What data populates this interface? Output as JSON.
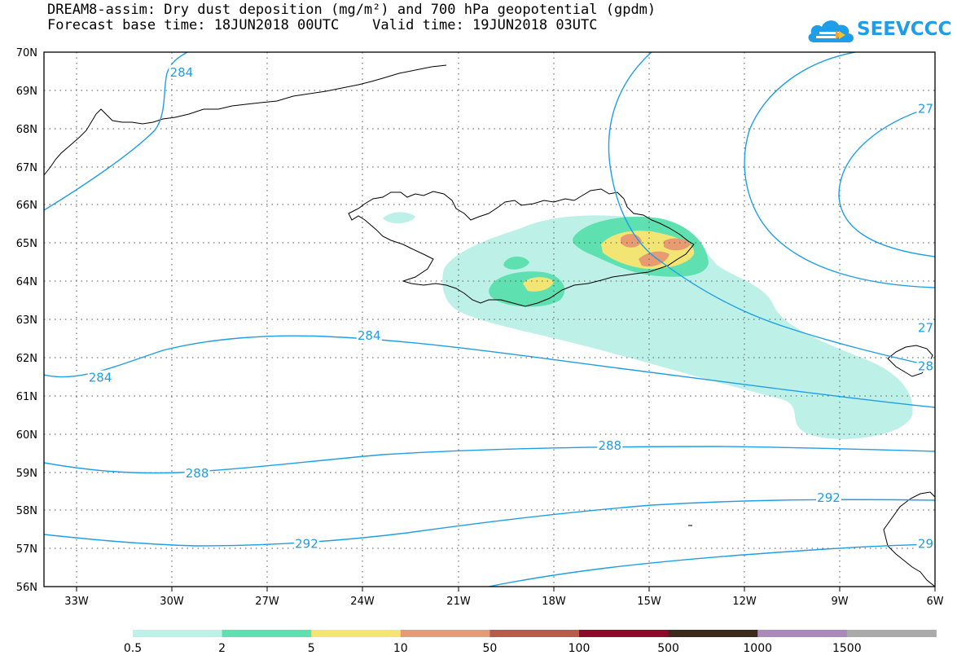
{
  "title": {
    "line1": "DREAM8-assim: Dry dust deposition (mg/m²) and 700 hPa geopotential (gpdm)",
    "line2": "Forecast base time: 18JUN2018 00UTC    Valid time: 19JUN2018 03UTC"
  },
  "logo": {
    "text": "SEEVCCC",
    "icon": "cloud-logo-icon",
    "color": "#1e9ee8"
  },
  "map": {
    "lat_labels": [
      "70N",
      "69N",
      "68N",
      "67N",
      "66N",
      "65N",
      "64N",
      "63N",
      "62N",
      "61N",
      "60N",
      "59N",
      "58N",
      "57N",
      "56N"
    ],
    "lon_labels": [
      "33W",
      "30W",
      "27W",
      "24W",
      "21W",
      "18W",
      "15W",
      "12W",
      "9W",
      "6W"
    ],
    "lon_range": [
      -34.5,
      -6
    ],
    "lat_range": [
      56,
      70
    ],
    "contour_color": "#1e9ee8",
    "contour_labels": [
      {
        "text": "284",
        "lon": -30.1,
        "lat": 69.45
      },
      {
        "text": "284",
        "lon": -24.1,
        "lat": 62.55
      },
      {
        "text": "284",
        "lon": -32.7,
        "lat": 61.45
      },
      {
        "text": "288",
        "lon": -16.4,
        "lat": 59.67
      },
      {
        "text": "288",
        "lon": -29.6,
        "lat": 58.95
      },
      {
        "text": "292",
        "lon": -9.4,
        "lat": 58.3
      },
      {
        "text": "292",
        "lon": -26.1,
        "lat": 57.1
      },
      {
        "text": "27",
        "lon": -6.3,
        "lat": 68.5
      },
      {
        "text": "27",
        "lon": -6.3,
        "lat": 62.75
      },
      {
        "text": "28",
        "lon": -6.3,
        "lat": 61.75
      },
      {
        "text": "29",
        "lon": -6.3,
        "lat": 57.1
      }
    ]
  },
  "legend": {
    "colors": [
      "#bdf1e8",
      "#5ee0b0",
      "#f2e574",
      "#e89a70",
      "#b85a4c",
      "#8c0a2a",
      "#3d2a1e",
      "#a98ab9",
      "#aaaaaa"
    ],
    "labels": [
      "0.5",
      "2",
      "5",
      "10",
      "50",
      "100",
      "500",
      "1000",
      "1500"
    ]
  }
}
